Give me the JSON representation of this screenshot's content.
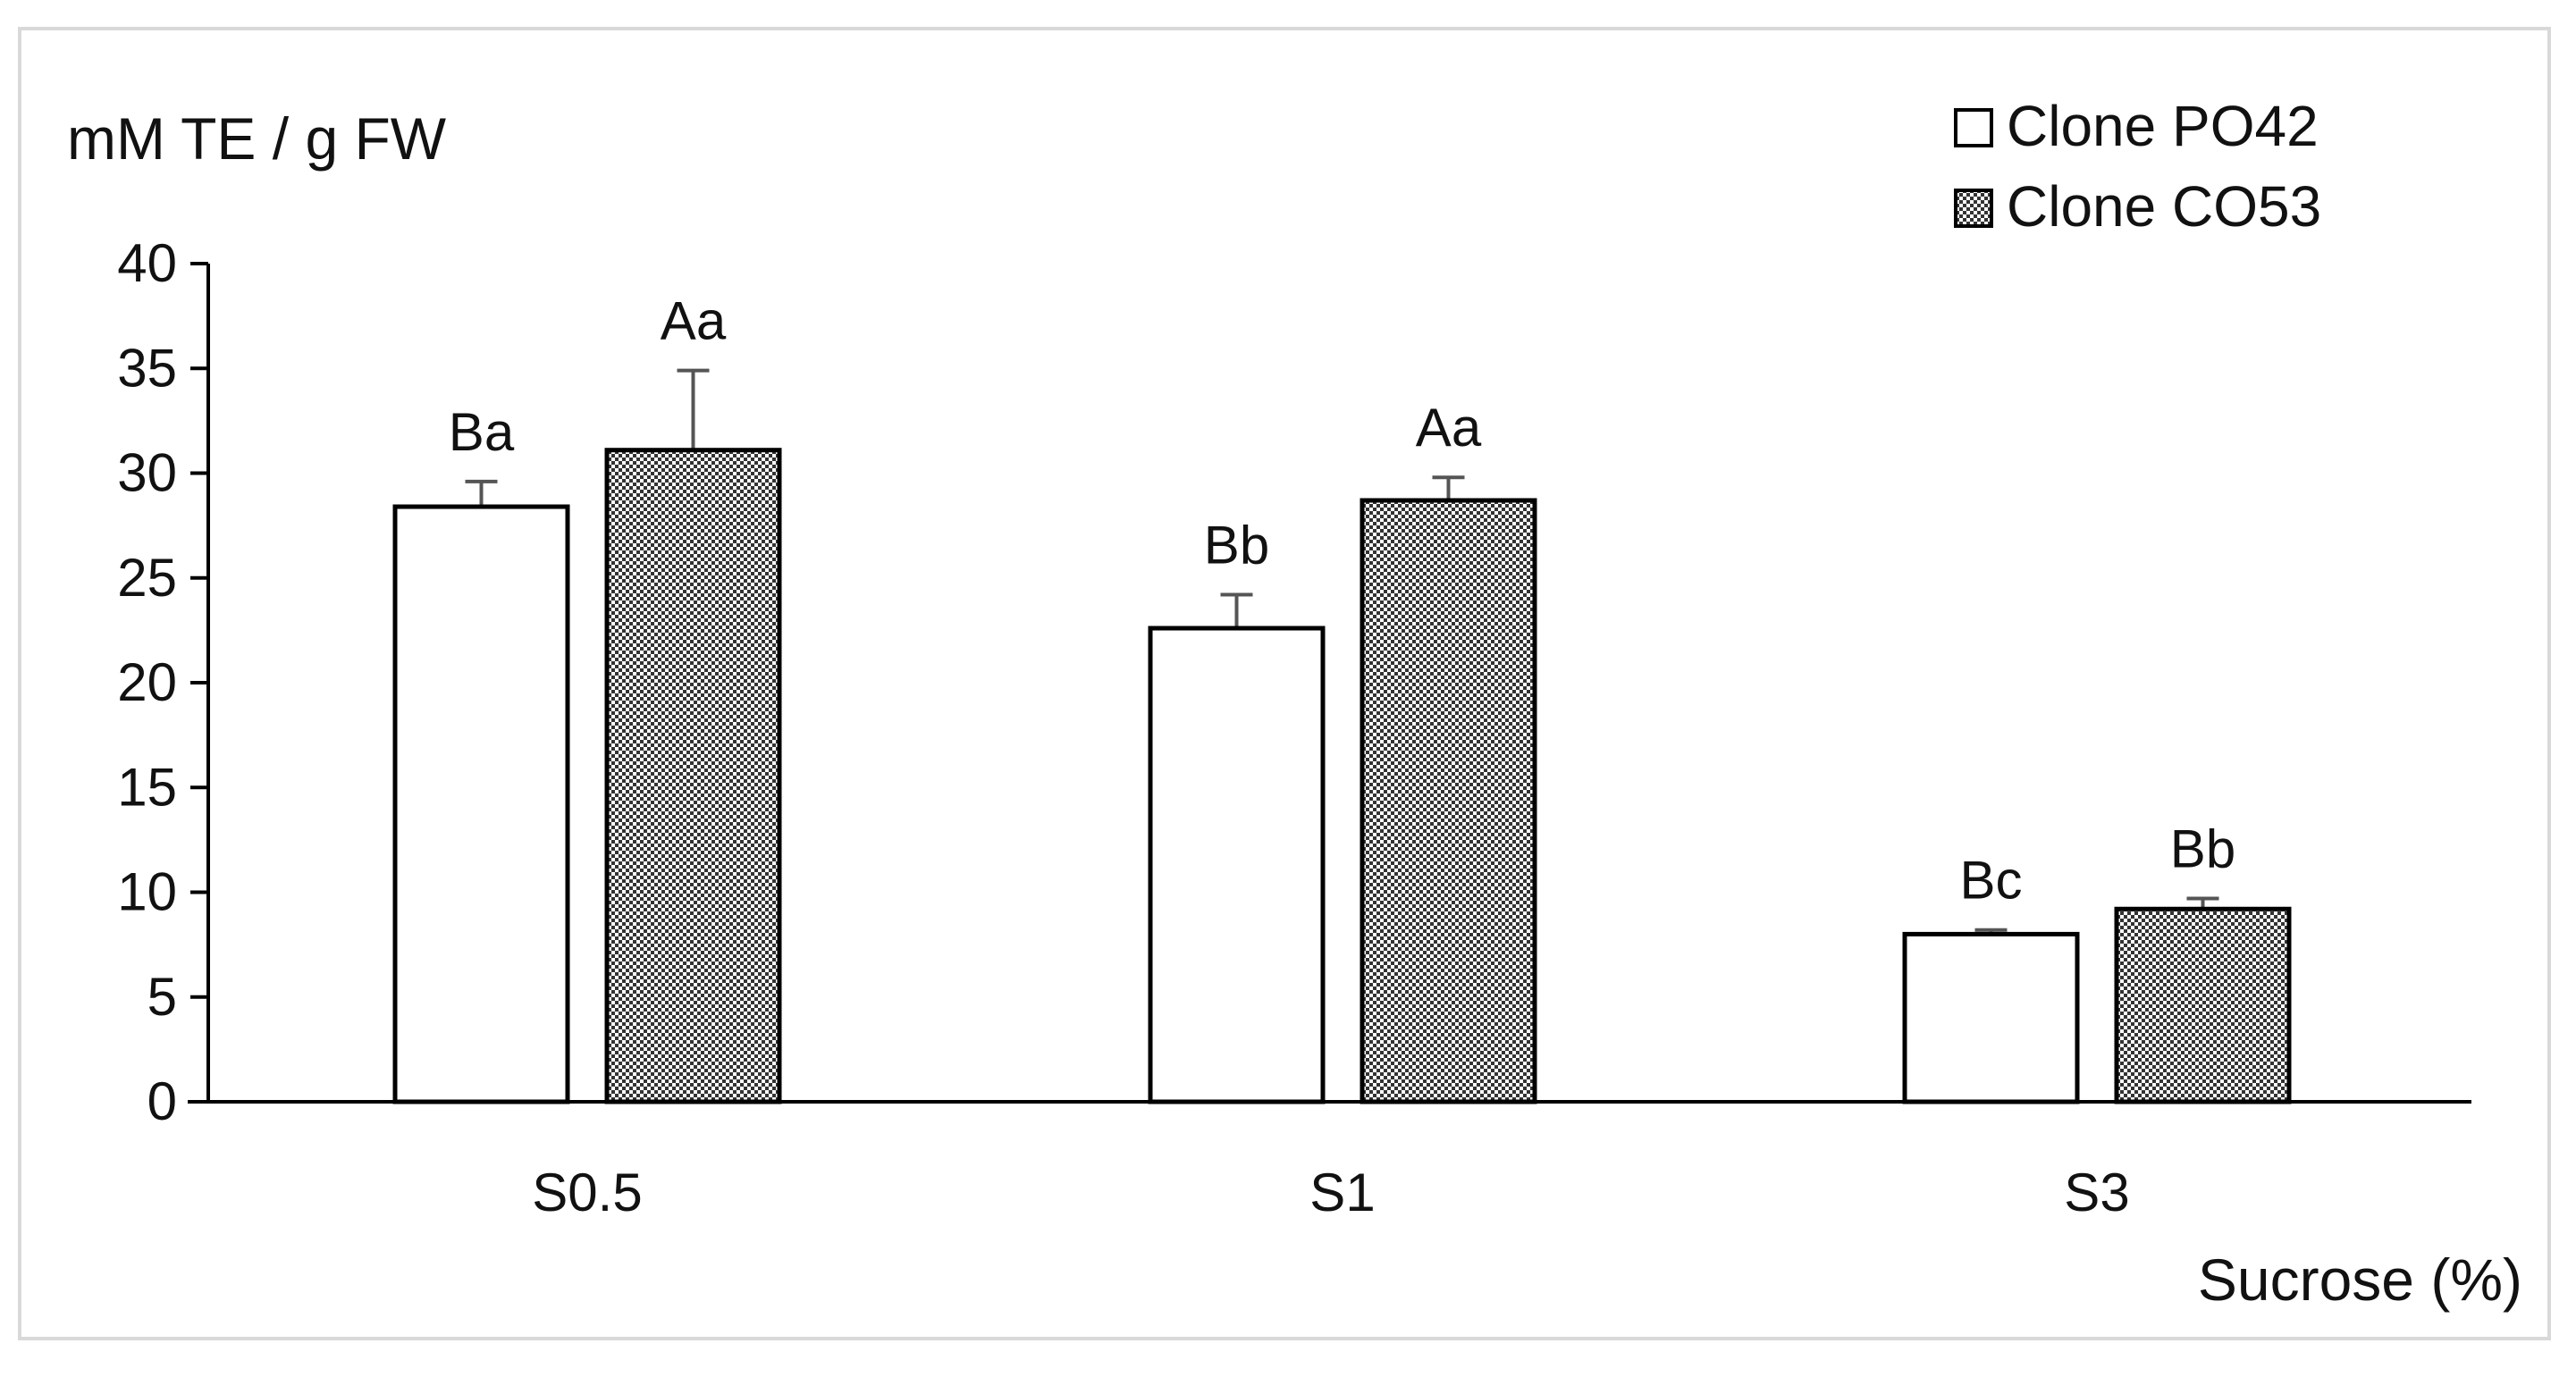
{
  "chart_data": {
    "type": "bar",
    "title": "",
    "ylabel": "mM TE / g FW",
    "xlabel": "Sucrose (%)",
    "ylim": [
      0,
      40
    ],
    "yticks": [
      0,
      5,
      10,
      15,
      20,
      25,
      30,
      35,
      40
    ],
    "categories": [
      "S0.5",
      "S1",
      "S3"
    ],
    "series": [
      {
        "name": "Clone PO42",
        "values": [
          28.4,
          22.6,
          8.0
        ],
        "errors": [
          1.2,
          1.6,
          0.2
        ],
        "labels": [
          "Ba",
          "Bb",
          "Bc"
        ],
        "fill": "white"
      },
      {
        "name": "Clone CO53",
        "values": [
          31.1,
          28.7,
          9.2
        ],
        "errors": [
          3.8,
          1.1,
          0.5
        ],
        "labels": [
          "Aa",
          "Aa",
          "Bb"
        ],
        "fill": "dotted"
      }
    ],
    "legend_position": "top-right",
    "grid": false
  },
  "colors": {
    "axis": "#000000",
    "bar_outline": "#000000",
    "error_bar": "#555555",
    "frame": "#d9d9d9",
    "pattern_dark": "#333333"
  }
}
